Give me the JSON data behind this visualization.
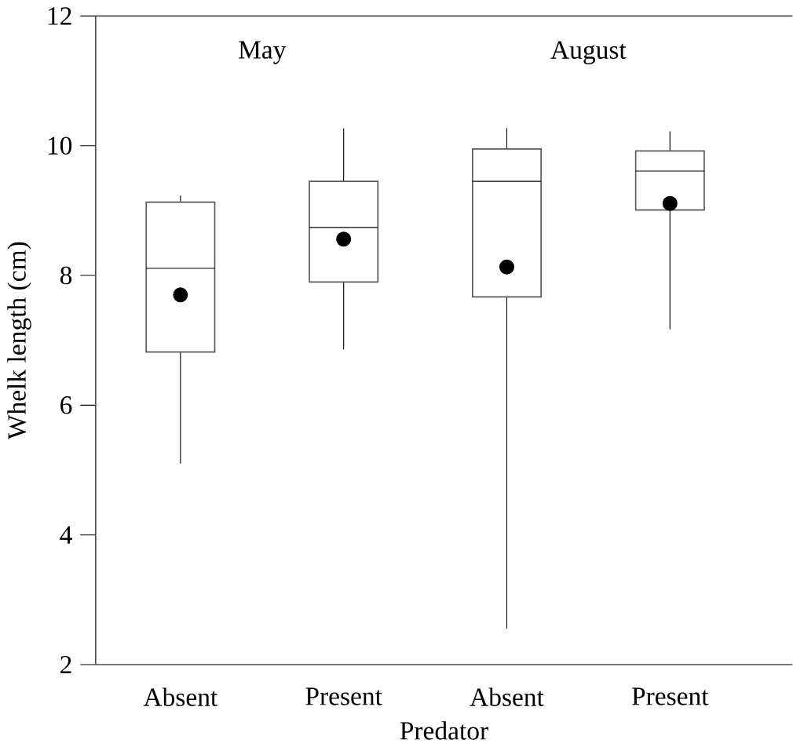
{
  "chart_data": {
    "type": "box",
    "categories": [
      "Absent",
      "Present",
      "Absent",
      "Present"
    ],
    "xlabel": "Predator",
    "ylabel": "Whelk length (cm)",
    "annotations": [
      "May",
      "August"
    ],
    "ylim": [
      2,
      12
    ],
    "yticks": [
      2,
      4,
      6,
      8,
      10,
      12
    ],
    "boxes": [
      {
        "low": 5.1,
        "q1": 6.82,
        "median": 8.11,
        "q3": 9.13,
        "high": 9.23,
        "mean": 7.7
      },
      {
        "low": 6.86,
        "q1": 7.9,
        "median": 8.74,
        "q3": 9.45,
        "high": 10.27,
        "mean": 8.56
      },
      {
        "low": 2.56,
        "q1": 7.67,
        "median": 9.45,
        "q3": 9.95,
        "high": 10.27,
        "mean": 8.13
      },
      {
        "low": 7.17,
        "q1": 9.01,
        "median": 9.61,
        "q3": 9.92,
        "high": 10.22,
        "mean": 9.11
      }
    ]
  }
}
